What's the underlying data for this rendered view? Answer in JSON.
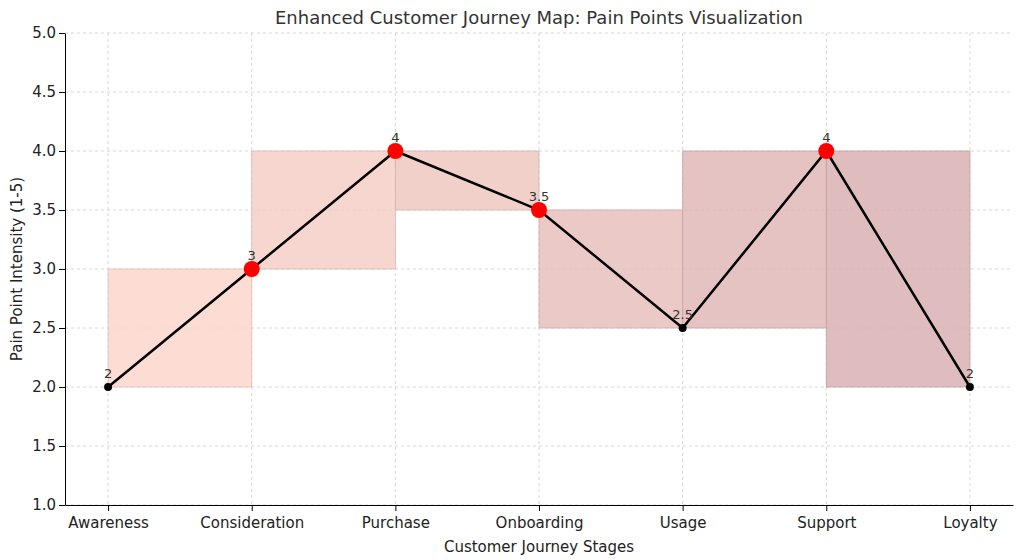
{
  "chart_data": {
    "type": "line",
    "title": "Enhanced Customer Journey Map: Pain Points Visualization",
    "x_label": "Customer Journey Stages",
    "y_label": "Pain Point Intensity (1-5)",
    "categories": [
      "Awareness",
      "Consideration",
      "Purchase",
      "Onboarding",
      "Usage",
      "Support",
      "Loyalty"
    ],
    "values": [
      2,
      3,
      4,
      3.5,
      2.5,
      4,
      2
    ],
    "color": "black",
    "colors": [
      "black",
      "red",
      "red",
      "red",
      "black",
      "red",
      "black"
    ],
    "marker": "circle",
    "ylim": [
      1,
      5
    ],
    "yticks": [
      {
        "value": 1,
        "label": "1.0"
      },
      1.5,
      {
        "value": 2,
        "label": "2.0"
      },
      2.5,
      {
        "value": 3,
        "label": "3.0"
      },
      3.5,
      {
        "value": 4,
        "label": "4.0"
      },
      4.5,
      {
        "value": 5,
        "label": "5.0"
      }
    ],
    "grid": true,
    "data_labels": true
  }
}
